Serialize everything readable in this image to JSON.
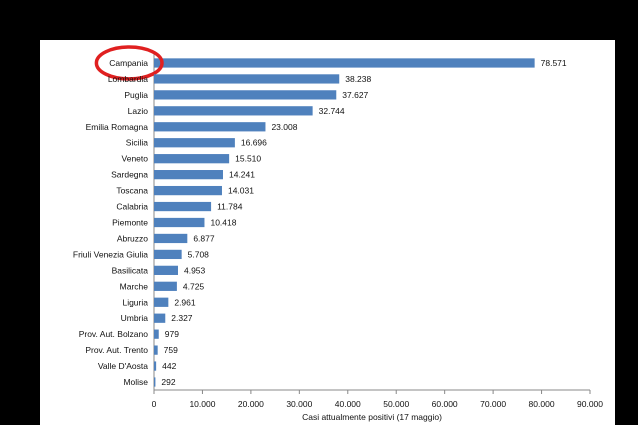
{
  "chart_data": {
    "type": "bar",
    "orientation": "horizontal",
    "title": "",
    "xlabel": "Casi attualmente positivi (17 maggio)",
    "ylabel": "",
    "xlim": [
      0,
      90000
    ],
    "x_ticks": [
      "0",
      "10.000",
      "20.000",
      "30.000",
      "40.000",
      "50.000",
      "60.000",
      "70.000",
      "80.000",
      "90.000"
    ],
    "categories": [
      "Campania",
      "Lombardia",
      "Puglia",
      "Lazio",
      "Emilia Romagna",
      "Sicilia",
      "Veneto",
      "Sardegna",
      "Toscana",
      "Calabria",
      "Piemonte",
      "Abruzzo",
      "Friuli Venezia Giulia",
      "Basilicata",
      "Marche",
      "Liguria",
      "Umbria",
      "Prov. Aut. Bolzano",
      "Prov. Aut. Trento",
      "Valle D'Aosta",
      "Molise"
    ],
    "values": [
      78571,
      38238,
      37627,
      32744,
      23008,
      16696,
      15510,
      14241,
      14031,
      11784,
      10418,
      6877,
      5708,
      4953,
      4725,
      2961,
      2327,
      979,
      759,
      442,
      292
    ],
    "value_labels": [
      "78.571",
      "38.238",
      "37.627",
      "32.744",
      "23.008",
      "16.696",
      "15.510",
      "14.241",
      "14.031",
      "11.784",
      "10.418",
      "6.877",
      "5.708",
      "4.953",
      "4.725",
      "2.961",
      "2.327",
      "979",
      "759",
      "442",
      "292"
    ],
    "bar_color": "#4f81bd",
    "highlight_color": "#e02020",
    "highlighted_category": "Campania",
    "grid": false,
    "legend": "none"
  }
}
